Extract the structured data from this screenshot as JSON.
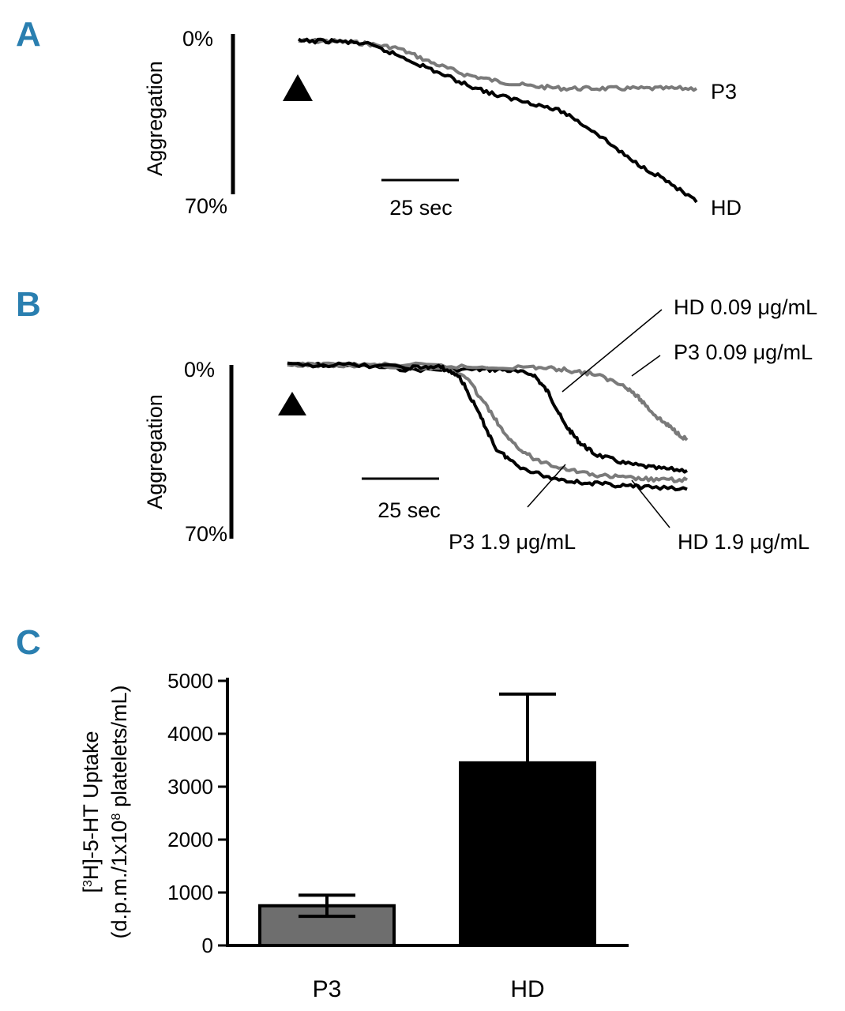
{
  "colors": {
    "panel_letter": "#2a7fb0",
    "hd": "#000000",
    "p3": "#7a7a7a",
    "p3_bar": "#6e6e6e",
    "hd_bar": "#000000"
  },
  "chart_data": [
    {
      "panel": "A",
      "type": "line",
      "ylabel": "Aggregation",
      "y_top_label": "0%",
      "y_bottom_label": "70%",
      "ylim": [
        0,
        70
      ],
      "agonist_marker": "triangle",
      "time_scale_label": "25 sec",
      "time_scale_value_sec": 25,
      "series": [
        {
          "name": "P3",
          "label": "P3",
          "color": "#7a7a7a",
          "x": [
            0,
            10,
            20,
            30,
            40,
            50,
            60,
            70,
            80,
            90,
            100,
            110,
            120
          ],
          "y": [
            0,
            0,
            1,
            3,
            9,
            14,
            17,
            19,
            20,
            20,
            20,
            20,
            20
          ]
        },
        {
          "name": "HD",
          "label": "HD",
          "color": "#000000",
          "x": [
            0,
            10,
            20,
            30,
            40,
            50,
            60,
            70,
            80,
            90,
            100,
            110,
            120
          ],
          "y": [
            0,
            0,
            1,
            6,
            12,
            18,
            23,
            26,
            30,
            39,
            50,
            58,
            68
          ]
        }
      ]
    },
    {
      "panel": "B",
      "type": "line",
      "ylabel": "Aggregation",
      "y_top_label": "0%",
      "y_bottom_label": "70%",
      "ylim": [
        0,
        70
      ],
      "agonist_marker": "triangle",
      "time_scale_label": "25 sec",
      "time_scale_value_sec": 25,
      "series": [
        {
          "name": "HD 0.09 µg/mL",
          "label": "HD 0.09 μg/mL",
          "color": "#000000",
          "x": [
            0,
            20,
            40,
            60,
            70,
            80,
            85,
            90,
            95,
            100,
            110,
            120,
            130
          ],
          "y": [
            0,
            0,
            2,
            2,
            2,
            4,
            12,
            25,
            33,
            38,
            42,
            44,
            45
          ]
        },
        {
          "name": "P3 0.09 µg/mL",
          "label": "P3 0.09 μg/mL",
          "color": "#7a7a7a",
          "x": [
            0,
            20,
            40,
            60,
            80,
            90,
            100,
            110,
            115,
            120,
            125,
            130
          ],
          "y": [
            0,
            0,
            0,
            1,
            1,
            2,
            4,
            9,
            15,
            22,
            27,
            32
          ]
        },
        {
          "name": "P3 1.9 µg/mL",
          "label": "P3 1.9 μg/mL",
          "color": "#7a7a7a",
          "x": [
            0,
            20,
            40,
            50,
            58,
            65,
            72,
            80,
            90,
            100,
            110,
            120,
            130
          ],
          "y": [
            0,
            0,
            1,
            1,
            5,
            18,
            32,
            40,
            44,
            47,
            48,
            49,
            49
          ]
        },
        {
          "name": "HD 1.9 µg/mL",
          "label": "HD 1.9 μg/mL",
          "color": "#000000",
          "x": [
            0,
            20,
            40,
            50,
            56,
            62,
            68,
            75,
            85,
            95,
            105,
            115,
            130
          ],
          "y": [
            0,
            0,
            1,
            1,
            5,
            20,
            36,
            43,
            48,
            50,
            51,
            52,
            53
          ]
        }
      ]
    },
    {
      "panel": "C",
      "type": "bar",
      "ylabel_line1": "[3H]-5-HT Uptake",
      "ylabel_line2": "(d.p.m./1x108 platelets/mL)",
      "ylim": [
        0,
        5000
      ],
      "yticks": [
        0,
        1000,
        2000,
        3000,
        4000,
        5000
      ],
      "categories": [
        "P3",
        "HD"
      ],
      "values": [
        750,
        3450
      ],
      "errors": [
        200,
        1300
      ],
      "colors": [
        "#6e6e6e",
        "#000000"
      ]
    }
  ],
  "panels": {
    "a": {
      "letter": "A"
    },
    "b": {
      "letter": "B"
    },
    "c": {
      "letter": "C"
    }
  }
}
